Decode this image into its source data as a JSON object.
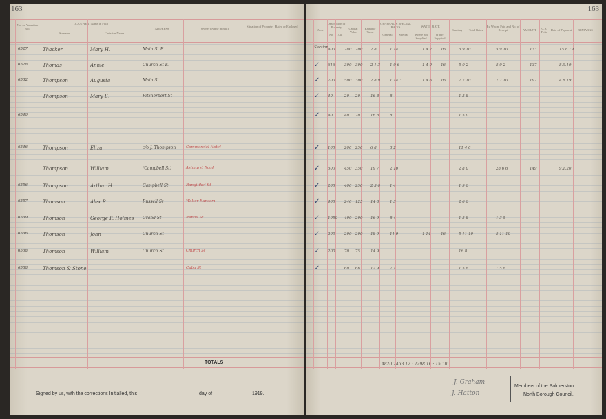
{
  "left_page": {
    "page_number": "163",
    "headers": {
      "roll": "No. on Valuation Roll",
      "occupier": "OCCUPIER (Name in Full)",
      "surname": "Surname",
      "christian": "Christian Name",
      "address": "ADDRESS",
      "owner": "Owner (Name in Full)",
      "situation": "Situation of Property",
      "rated": "Rated or Enclosed"
    },
    "rows": [
      {
        "roll": "6527",
        "surname": "Thacker",
        "christian": "Mary H.",
        "address": "Main St E.",
        "owner": ""
      },
      {
        "roll": "6528",
        "surname": "Thomas",
        "christian": "Annie",
        "address": "Church St E.",
        "owner": ""
      },
      {
        "roll": "6532",
        "surname": "Thompson",
        "christian": "Augusta",
        "address": "Main St",
        "owner": ""
      },
      {
        "roll": "",
        "surname": "Thompson",
        "christian": "Mary E.",
        "address": "Fitzherbert St",
        "owner": ""
      },
      {
        "roll": "6540",
        "surname": "",
        "christian": "",
        "address": "",
        "owner": ""
      },
      {
        "roll": "6546",
        "surname": "Thompson",
        "christian": "Eliza",
        "address": "c/o J. Thompson",
        "owner": "Commercial Hotel"
      },
      {
        "roll": "",
        "surname": "Thompson",
        "christian": "William",
        "address": "(Campbell St)",
        "owner": "Ashhurst Road"
      },
      {
        "roll": "6556",
        "surname": "Thompson",
        "christian": "Arthur H.",
        "address": "Campbell St",
        "owner": "Rangitikei St"
      },
      {
        "roll": "6557",
        "surname": "Thomson",
        "christian": "Alex R.",
        "address": "Russell St",
        "owner": "Walter Ransom"
      },
      {
        "roll": "6559",
        "surname": "Thomson",
        "christian": "George F. Holmes",
        "address": "Grand St",
        "owner": "Renall St"
      },
      {
        "roll": "6566",
        "surname": "Thomson",
        "christian": "John",
        "address": "Church St",
        "owner": ""
      },
      {
        "roll": "6568",
        "surname": "Thomson",
        "christian": "William",
        "address": "Church St",
        "owner": "Church St"
      },
      {
        "roll": "6588",
        "surname": "Thomson & Stone",
        "christian": "",
        "address": "",
        "owner": "Cuba St"
      }
    ],
    "totals_label": "TOTALS",
    "footer": {
      "signed": "Signed by us, with the corrections Initialled, this",
      "day_of": "day of",
      "year": "1919."
    }
  },
  "right_page": {
    "page_number": "163",
    "headers": {
      "area": "Area",
      "description": "Description of Property",
      "no": "No.",
      "allot": "All.",
      "capital": "Capital Value",
      "rateable": "Rateable Value",
      "general_special": "GENERAL & SPECIAL RATES",
      "general": "General",
      "special": "Special",
      "water": "WATER RATE",
      "water_supplied": "Where not Supplied",
      "where_supplied": "Where Supplied",
      "sanitary": "Sanitary",
      "total": "Total Rates",
      "paid_by": "By Whom Paid and No. of Receipt",
      "amount": "AMOUNT",
      "cb": "C.B. Folio",
      "date": "Date of Payment",
      "remarks": "REMARKS"
    },
    "rows": [
      {
        "check": "Section",
        "values": [
          "400",
          "280",
          "200",
          "2 8",
          "1 14",
          "",
          "1 4 2",
          "16",
          "5 9 10",
          "",
          "5 9 10",
          "133",
          "15.8.19"
        ]
      },
      {
        "check": "✓",
        "values": [
          "616",
          "300",
          "300",
          "2 1 3",
          "1 0 6",
          "",
          "1 4 0",
          "16",
          "5 0 2",
          "",
          "5 0 2",
          "137",
          "8.9.19"
        ]
      },
      {
        "check": "✓",
        "values": [
          "700",
          "500",
          "300",
          "2 8 9",
          "1 14 3",
          "",
          "1 4 6",
          "16",
          "7 7 10",
          "",
          "7 7 10",
          "197",
          "4.8.19"
        ]
      },
      {
        "check": "✓",
        "values": [
          "40",
          "20",
          "20",
          "16 8",
          "8",
          "",
          "",
          "",
          "1 5 8",
          "",
          "",
          "",
          ""
        ]
      },
      {
        "check": "✓",
        "values": [
          "40",
          "40",
          "70",
          "16 8",
          "8",
          "",
          "",
          "",
          "1 5 0",
          "",
          "",
          "",
          ""
        ]
      },
      {
        "check": "✓",
        "values": [
          "100",
          "200",
          "250",
          "6 8",
          "3 2",
          "",
          "",
          "",
          "11 4 0",
          "",
          "",
          "",
          ""
        ]
      },
      {
        "check": "✓",
        "values": [
          "500",
          "450",
          "350",
          "19 7",
          "2 10",
          "",
          "",
          "",
          "2 8 0",
          "",
          "28 6 6",
          "149",
          "9.1.20"
        ]
      },
      {
        "check": "✓",
        "values": [
          "200",
          "400",
          "250",
          "2 3 6",
          "1 4",
          "",
          "",
          "",
          "1 9 0",
          "",
          "",
          "",
          ""
        ]
      },
      {
        "check": "✓",
        "values": [
          "400",
          "240",
          "125",
          "14 8",
          "1 3",
          "",
          "",
          "",
          "2 6 0",
          "",
          "",
          "",
          ""
        ]
      },
      {
        "check": "✓",
        "values": [
          "1050",
          "400",
          "200",
          "16 9",
          "8 4",
          "",
          "",
          "",
          "1 5 8",
          "",
          "1 3 5",
          "",
          ""
        ]
      },
      {
        "check": "✓",
        "values": [
          "200",
          "200",
          "200",
          "18 9",
          "11 9",
          "",
          "1 14",
          "16",
          "5 11 10",
          "",
          "5 11 10",
          "",
          ""
        ]
      },
      {
        "check": "✓",
        "values": [
          "200",
          "70",
          "75",
          "14 9",
          "",
          "",
          "",
          "",
          "16 8",
          "",
          "",
          "",
          ""
        ]
      },
      {
        "check": "✓",
        "values": [
          "",
          "60",
          "66",
          "12 9",
          "7 11",
          "",
          "",
          "",
          "1 5 8",
          "",
          "1 5 8",
          "",
          ""
        ]
      }
    ],
    "totals": "4820 2453 12 · 2298 16 · 15 10",
    "footer": {
      "council": "Members of the Palmerston",
      "council2": "North Borough Council.",
      "signature1": "J. Graham",
      "signature2": "J. Hatton"
    }
  }
}
